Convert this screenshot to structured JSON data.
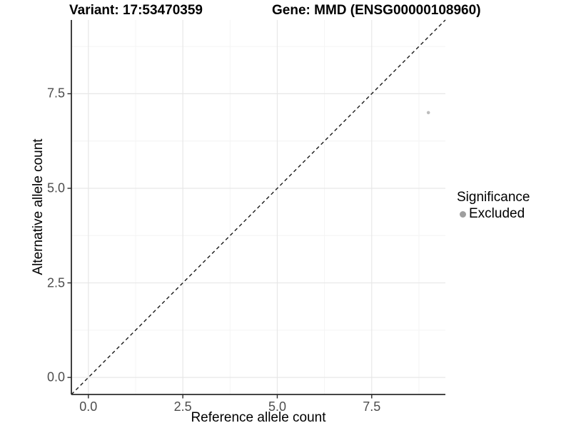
{
  "header": {
    "variant_label": "Variant: 17:53470359",
    "gene_label": "Gene: MMD (ENSG00000108960)"
  },
  "chart_data": {
    "type": "scatter",
    "title": "Variant: 17:53470359   Gene: MMD (ENSG00000108960)",
    "xlabel": "Reference allele count",
    "ylabel": "Alternative allele count",
    "xlim": [
      -0.45,
      9.45
    ],
    "ylim": [
      -0.45,
      9.45
    ],
    "x_ticks": {
      "values": [
        0,
        2.5,
        5,
        7.5
      ],
      "labels": [
        "0.0",
        "2.5",
        "5.0",
        "7.5"
      ]
    },
    "y_ticks": {
      "values": [
        0,
        2.5,
        5,
        7.5
      ],
      "labels": [
        "0.0",
        "2.5",
        "5.0",
        "7.5"
      ]
    },
    "minor_tick_values": [
      1.25,
      3.75,
      6.25,
      8.75
    ],
    "grid": true,
    "reference_line": {
      "type": "abline",
      "slope": 1,
      "intercept": 0,
      "style": "dashed",
      "color": "#1a1a1a"
    },
    "series": [
      {
        "name": "Excluded",
        "color": "#bdbdbd",
        "points": [
          {
            "x": 9,
            "y": 7
          }
        ]
      }
    ],
    "legend": {
      "title": "Significance",
      "position": "right",
      "entries": [
        {
          "label": "Excluded",
          "color": "#9e9e9e"
        }
      ]
    }
  },
  "colors": {
    "background": "#ffffff",
    "grid_major": "#e7e7e7",
    "grid_minor": "#f4f4f4",
    "axis_line": "#2b2b2b",
    "tick_text": "#4d4d4d",
    "title_text": "#000000"
  }
}
